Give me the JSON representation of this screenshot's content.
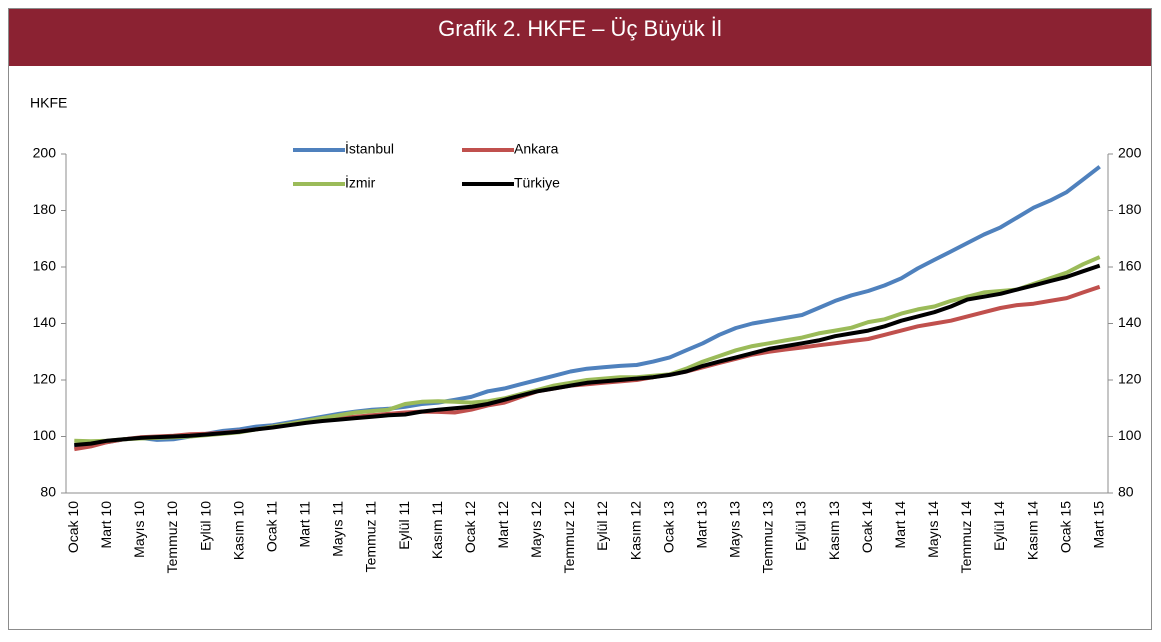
{
  "chart_data": {
    "type": "line",
    "title": "Grafik 2. HKFE – Üç Büyük İl",
    "y_label": "HKFE",
    "categories": [
      "Ocak 10",
      null,
      "Mart 10",
      null,
      "Mayıs 10",
      null,
      "Temmuz 10",
      null,
      "Eylül 10",
      null,
      "Kasım 10",
      null,
      "Ocak 11",
      null,
      "Mart 11",
      null,
      "Mayıs 11",
      null,
      "Temmuz 11",
      null,
      "Eylül 11",
      null,
      "Kasım 11",
      null,
      "Ocak 12",
      null,
      "Mart 12",
      null,
      "Mayıs 12",
      null,
      "Temmuz 12",
      null,
      "Eylül 12",
      null,
      "Kasım 12",
      null,
      "Ocak 13",
      null,
      "Mart 13",
      null,
      "Mayıs 13",
      null,
      "Temmuz 13",
      null,
      "Eylül 13",
      null,
      "Kasım 13",
      null,
      "Ocak 14",
      null,
      "Mart 14",
      null,
      "Mayıs 14",
      null,
      "Temmuz 14",
      null,
      "Eylül 14",
      null,
      "Kasım 14",
      null,
      "Ocak 15",
      null,
      "Mart 15"
    ],
    "series": [
      {
        "name": "İstanbul",
        "color": "#4f81bd",
        "values": [
          96.5,
          97.2,
          98,
          99,
          99.5,
          98.8,
          99,
          100,
          101,
          102,
          102.5,
          103.5,
          104,
          105,
          106,
          107,
          108,
          108.8,
          109.5,
          109.8,
          110.5,
          111.5,
          112,
          113,
          114,
          116,
          117,
          118.5,
          120,
          121.5,
          123,
          124,
          124.5,
          125,
          125.3,
          126.5,
          128,
          130.5,
          133,
          136,
          138.4,
          140,
          141,
          142,
          143,
          145.5,
          148,
          150,
          151.5,
          153.5,
          156,
          159.5,
          162.5,
          165.5,
          168.5,
          171.5,
          174,
          177.5,
          181,
          183.5,
          186.5,
          191,
          195.5
        ]
      },
      {
        "name": "Ankara",
        "color": "#c0504d",
        "values": [
          95.5,
          96.5,
          98,
          99,
          99.7,
          100,
          100.3,
          100.8,
          101,
          101.3,
          101.8,
          102.5,
          103.5,
          104.5,
          105.5,
          106,
          106.5,
          107,
          107.5,
          108,
          108.5,
          108.8,
          108.7,
          108.5,
          109.5,
          111,
          112,
          114,
          116,
          117,
          118,
          118.5,
          119,
          119.5,
          120,
          121,
          122,
          123,
          124.5,
          126,
          127.5,
          129,
          130,
          130.8,
          131.5,
          132.3,
          133,
          133.8,
          134.5,
          136,
          137.5,
          139,
          140,
          141,
          142.5,
          144,
          145.5,
          146.5,
          147,
          148,
          149,
          151,
          153
        ]
      },
      {
        "name": "İzmir",
        "color": "#9bbb59",
        "values": [
          98.5,
          98.3,
          98.5,
          99,
          99.3,
          99.5,
          99.7,
          100,
          100.5,
          101,
          101.5,
          102.5,
          103.5,
          104.5,
          105.5,
          106.5,
          107.5,
          108.5,
          109,
          109.5,
          111.5,
          112.3,
          112.5,
          112.3,
          112,
          112.5,
          113.5,
          115,
          116.5,
          118,
          119,
          120,
          120.5,
          121,
          121,
          121.5,
          122,
          124,
          126.5,
          128.5,
          130.5,
          132,
          133,
          134,
          135,
          136.5,
          137.5,
          138.5,
          140.5,
          141.5,
          143.5,
          145,
          146,
          148,
          149.5,
          151,
          151.5,
          152,
          154,
          156,
          158,
          161,
          163.5
        ]
      },
      {
        "name": "Türkiye",
        "color": "#000000",
        "values": [
          97,
          97.5,
          98.5,
          99,
          99.5,
          99.8,
          100,
          100.3,
          100.7,
          101.2,
          101.7,
          102.5,
          103.2,
          104,
          104.8,
          105.5,
          106,
          106.5,
          107,
          107.5,
          107.8,
          108.8,
          109.5,
          110,
          110.5,
          111.5,
          113,
          114.5,
          116,
          117,
          118,
          119,
          119.5,
          120,
          120.5,
          121,
          121.8,
          123,
          125,
          126.5,
          128,
          129.5,
          131,
          132,
          133,
          134,
          135.5,
          136.5,
          137.5,
          139,
          141,
          142.5,
          144,
          146,
          148.5,
          149.5,
          150.5,
          152,
          153.5,
          155,
          156.5,
          158.5,
          160.5
        ]
      }
    ],
    "ylim": [
      80,
      200
    ],
    "yticks": [
      80,
      100,
      120,
      140,
      160,
      180,
      200
    ],
    "y2lim": [
      80,
      200
    ],
    "y2ticks": [
      80,
      100,
      120,
      140,
      160,
      180,
      200
    ],
    "grid": false,
    "header_color": "#8b2232"
  }
}
